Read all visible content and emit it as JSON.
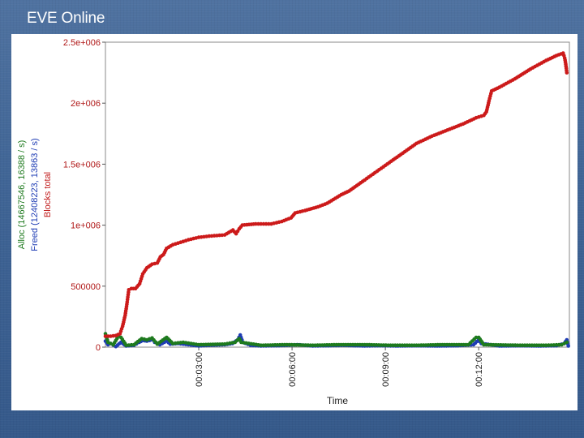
{
  "slide": {
    "title": "EVE Online"
  },
  "chart_data": {
    "type": "scatter",
    "title": "",
    "xlabel": "Time",
    "ylabel_lines": [
      {
        "text": "Alloc (14667546, 16388 / s)",
        "color": "#1e7a1e"
      },
      {
        "text": "Freed (12408223, 13863 / s)",
        "color": "#1e3cb4"
      },
      {
        "text": "Blocks total",
        "color": "#c01818"
      }
    ],
    "x_unit": "seconds",
    "xlim": [
      0,
      895
    ],
    "ylim": [
      0,
      2500000
    ],
    "x_ticks": [
      {
        "value": 180,
        "label": "00:03:00"
      },
      {
        "value": 360,
        "label": "00:06:00"
      },
      {
        "value": 540,
        "label": "00:09:00"
      },
      {
        "value": 720,
        "label": "00:12:00"
      }
    ],
    "y_ticks": [
      {
        "value": 0,
        "label": "0"
      },
      {
        "value": 500000,
        "label": "500000"
      },
      {
        "value": 1000000,
        "label": "1e+006"
      },
      {
        "value": 1500000,
        "label": "1.5e+006"
      },
      {
        "value": 2000000,
        "label": "2e+006"
      },
      {
        "value": 2500000,
        "label": "2.5e+006"
      }
    ],
    "grid": false,
    "series": [
      {
        "name": "Blocks total",
        "color": "#cc1a1a",
        "points": [
          [
            0,
            90000
          ],
          [
            10,
            90000
          ],
          [
            20,
            95000
          ],
          [
            28,
            110000
          ],
          [
            33,
            170000
          ],
          [
            38,
            260000
          ],
          [
            42,
            370000
          ],
          [
            45,
            470000
          ],
          [
            50,
            480000
          ],
          [
            58,
            480000
          ],
          [
            66,
            520000
          ],
          [
            72,
            600000
          ],
          [
            80,
            650000
          ],
          [
            90,
            680000
          ],
          [
            100,
            690000
          ],
          [
            106,
            740000
          ],
          [
            112,
            760000
          ],
          [
            118,
            810000
          ],
          [
            130,
            840000
          ],
          [
            145,
            860000
          ],
          [
            160,
            880000
          ],
          [
            180,
            900000
          ],
          [
            200,
            910000
          ],
          [
            230,
            920000
          ],
          [
            246,
            960000
          ],
          [
            252,
            930000
          ],
          [
            258,
            970000
          ],
          [
            264,
            1000000
          ],
          [
            290,
            1010000
          ],
          [
            320,
            1010000
          ],
          [
            340,
            1030000
          ],
          [
            358,
            1060000
          ],
          [
            366,
            1100000
          ],
          [
            385,
            1120000
          ],
          [
            410,
            1150000
          ],
          [
            428,
            1180000
          ],
          [
            455,
            1250000
          ],
          [
            470,
            1280000
          ],
          [
            500,
            1370000
          ],
          [
            540,
            1490000
          ],
          [
            570,
            1580000
          ],
          [
            600,
            1670000
          ],
          [
            630,
            1730000
          ],
          [
            660,
            1780000
          ],
          [
            690,
            1830000
          ],
          [
            715,
            1880000
          ],
          [
            730,
            1900000
          ],
          [
            735,
            1930000
          ],
          [
            740,
            2020000
          ],
          [
            745,
            2100000
          ],
          [
            760,
            2130000
          ],
          [
            790,
            2200000
          ],
          [
            820,
            2280000
          ],
          [
            850,
            2350000
          ],
          [
            870,
            2390000
          ],
          [
            883,
            2410000
          ],
          [
            886,
            2370000
          ],
          [
            888,
            2320000
          ],
          [
            890,
            2250000
          ]
        ]
      },
      {
        "name": "Alloc",
        "color": "#1e7a1e",
        "points": [
          [
            0,
            110000
          ],
          [
            5,
            40000
          ],
          [
            15,
            20000
          ],
          [
            25,
            90000
          ],
          [
            30,
            80000
          ],
          [
            40,
            15000
          ],
          [
            55,
            20000
          ],
          [
            70,
            70000
          ],
          [
            80,
            60000
          ],
          [
            90,
            75000
          ],
          [
            100,
            25000
          ],
          [
            118,
            80000
          ],
          [
            130,
            30000
          ],
          [
            150,
            40000
          ],
          [
            180,
            20000
          ],
          [
            230,
            25000
          ],
          [
            250,
            40000
          ],
          [
            258,
            70000
          ],
          [
            262,
            40000
          ],
          [
            300,
            15000
          ],
          [
            350,
            20000
          ],
          [
            400,
            15000
          ],
          [
            450,
            20000
          ],
          [
            500,
            20000
          ],
          [
            550,
            15000
          ],
          [
            600,
            15000
          ],
          [
            650,
            20000
          ],
          [
            700,
            20000
          ],
          [
            715,
            80000
          ],
          [
            720,
            80000
          ],
          [
            730,
            20000
          ],
          [
            800,
            15000
          ],
          [
            850,
            15000
          ],
          [
            880,
            20000
          ],
          [
            890,
            40000
          ]
        ]
      },
      {
        "name": "Freed",
        "color": "#1e3cb4",
        "points": [
          [
            0,
            50000
          ],
          [
            5,
            20000
          ],
          [
            10,
            30000
          ],
          [
            20,
            5000
          ],
          [
            30,
            40000
          ],
          [
            40,
            10000
          ],
          [
            55,
            15000
          ],
          [
            65,
            40000
          ],
          [
            72,
            55000
          ],
          [
            80,
            50000
          ],
          [
            90,
            60000
          ],
          [
            95,
            40000
          ],
          [
            105,
            20000
          ],
          [
            118,
            50000
          ],
          [
            125,
            25000
          ],
          [
            140,
            30000
          ],
          [
            160,
            20000
          ],
          [
            180,
            10000
          ],
          [
            200,
            15000
          ],
          [
            230,
            20000
          ],
          [
            245,
            30000
          ],
          [
            255,
            60000
          ],
          [
            260,
            100000
          ],
          [
            265,
            40000
          ],
          [
            280,
            15000
          ],
          [
            300,
            10000
          ],
          [
            330,
            12000
          ],
          [
            350,
            15000
          ],
          [
            370,
            20000
          ],
          [
            400,
            10000
          ],
          [
            430,
            12000
          ],
          [
            460,
            15000
          ],
          [
            500,
            10000
          ],
          [
            530,
            12000
          ],
          [
            560,
            10000
          ],
          [
            600,
            12000
          ],
          [
            640,
            10000
          ],
          [
            680,
            12000
          ],
          [
            710,
            20000
          ],
          [
            720,
            60000
          ],
          [
            725,
            30000
          ],
          [
            760,
            10000
          ],
          [
            800,
            12000
          ],
          [
            840,
            10000
          ],
          [
            870,
            12000
          ],
          [
            885,
            30000
          ],
          [
            890,
            60000
          ],
          [
            893,
            10000
          ]
        ]
      }
    ]
  }
}
